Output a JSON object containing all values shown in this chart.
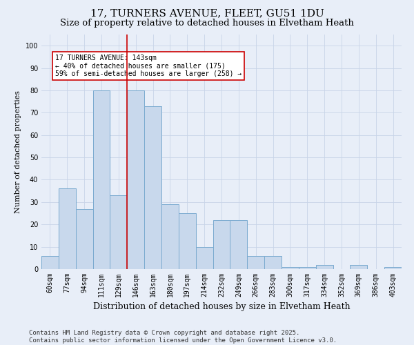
{
  "title": "17, TURNERS AVENUE, FLEET, GU51 1DU",
  "subtitle": "Size of property relative to detached houses in Elvetham Heath",
  "xlabel": "Distribution of detached houses by size in Elvetham Heath",
  "ylabel": "Number of detached properties",
  "categories": [
    "60sqm",
    "77sqm",
    "94sqm",
    "111sqm",
    "129sqm",
    "146sqm",
    "163sqm",
    "180sqm",
    "197sqm",
    "214sqm",
    "232sqm",
    "249sqm",
    "266sqm",
    "283sqm",
    "300sqm",
    "317sqm",
    "334sqm",
    "352sqm",
    "369sqm",
    "386sqm",
    "403sqm"
  ],
  "values": [
    6,
    36,
    27,
    80,
    33,
    80,
    73,
    29,
    25,
    10,
    22,
    22,
    6,
    6,
    1,
    1,
    2,
    0,
    2,
    0,
    1
  ],
  "bar_color": "#c8d8ec",
  "bar_edge_color": "#7aaacf",
  "vline_x_index": 5,
  "vline_color": "#cc0000",
  "annotation_text": "17 TURNERS AVENUE: 143sqm\n← 40% of detached houses are smaller (175)\n59% of semi-detached houses are larger (258) →",
  "annotation_box_color": "#ffffff",
  "annotation_box_edge": "#cc0000",
  "ylim": [
    0,
    105
  ],
  "yticks": [
    0,
    10,
    20,
    30,
    40,
    50,
    60,
    70,
    80,
    90,
    100
  ],
  "grid_color": "#c8d4e8",
  "background_color": "#e8eef8",
  "footer_text": "Contains HM Land Registry data © Crown copyright and database right 2025.\nContains public sector information licensed under the Open Government Licence v3.0.",
  "title_fontsize": 11,
  "subtitle_fontsize": 9.5,
  "xlabel_fontsize": 9,
  "ylabel_fontsize": 8,
  "tick_fontsize": 7,
  "footer_fontsize": 6.5
}
